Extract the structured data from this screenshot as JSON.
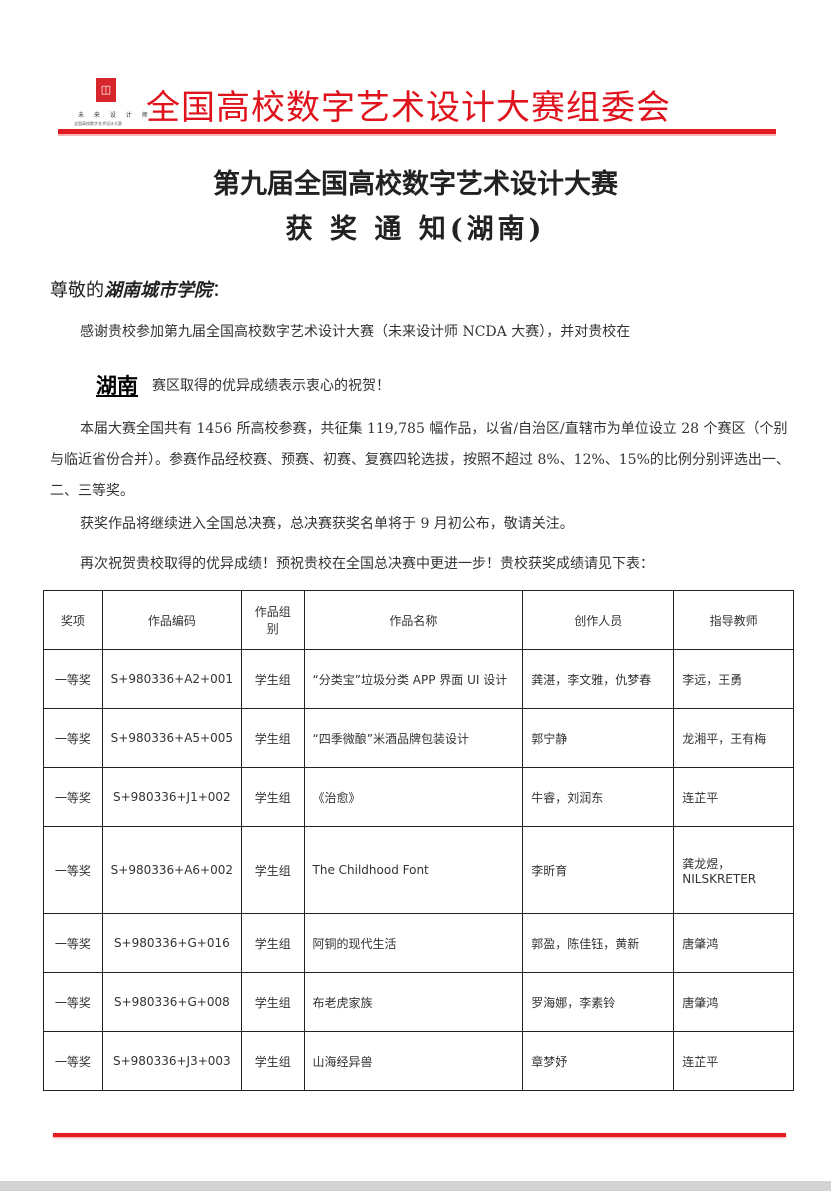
{
  "header": {
    "logo_mark": "未来设计师",
    "logo_line1": "未 来 设 计 师",
    "logo_line2": "全国高校数字艺术设计大赛",
    "org_name": "全国高校数字艺术设计大赛组委会",
    "brand_color": "#e31b23"
  },
  "title": {
    "line1": "第九届全国高校数字艺术设计大赛",
    "line2": "获 奖 通 知(湖南)"
  },
  "letter": {
    "greeting_prefix": "尊敬的",
    "school": "湖南城市学院",
    "greeting_suffix": "：",
    "para1": "感谢贵校参加第九届全国高校数字艺术设计大赛（未来设计师 NCDA 大赛），并对贵校在",
    "region": "湖南",
    "para1_cont": "赛区取得的优异成绩表示衷心的祝贺！",
    "para2": "本届大赛全国共有 1456 所高校参赛，共征集 119,785 幅作品，以省/自治区/直辖市为单位设立 28 个赛区（个别与临近省份合并）。参赛作品经校赛、预赛、初赛、复赛四轮选拔，按照不超过 8%、12%、15%的比例分别评选出一、二、三等奖。",
    "para3": "获奖作品将继续进入全国总决赛，总决赛获奖名单将于 9 月初公布，敬请关注。",
    "para4": "再次祝贺贵校取得的优异成绩！预祝贵校在全国总决赛中更进一步！贵校获奖成绩请见下表："
  },
  "table": {
    "headers": [
      "奖项",
      "作品编码",
      "作品组别",
      "作品名称",
      "创作人员",
      "指导教师"
    ],
    "rows": [
      [
        "一等奖",
        "S+980336+A2+001",
        "学生组",
        "“分类宝”垃圾分类 APP 界面 UI 设计",
        "龚湛，李文雅，仇梦春",
        "李远，王勇"
      ],
      [
        "一等奖",
        "S+980336+A5+005",
        "学生组",
        "“四季微酿”米酒品牌包装设计",
        "郭宁静",
        "龙湘平，王有梅"
      ],
      [
        "一等奖",
        "S+980336+J1+002",
        "学生组",
        "《治愈》",
        "牛睿，刘润东",
        "连芷平"
      ],
      [
        "一等奖",
        "S+980336+A6+002",
        "学生组",
        "The Childhood Font",
        "李昕育",
        "龚龙煜，NILSKRETER"
      ],
      [
        "一等奖",
        "S+980336+G+016",
        "学生组",
        "阿铜的现代生活",
        "郭盈，陈佳钰，黄新",
        "唐肇鸿"
      ],
      [
        "一等奖",
        "S+980336+G+008",
        "学生组",
        "布老虎家族",
        "罗海娜，李素铃",
        "唐肇鸿"
      ],
      [
        "一等奖",
        "S+980336+J3+003",
        "学生组",
        "山海经异兽",
        "章梦妤",
        "连芷平"
      ]
    ]
  }
}
